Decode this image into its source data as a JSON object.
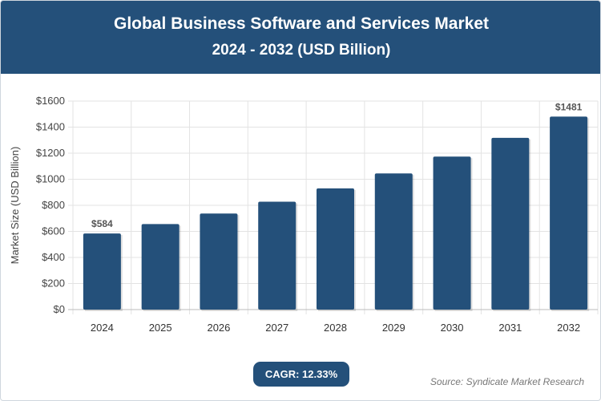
{
  "header": {
    "title": "Global Business Software and Services Market",
    "subtitle": "2024 - 2032 (USD Billion)"
  },
  "footer": {
    "cagr": "CAGR: 12.33%",
    "source": "Source: Syndicate Market Research"
  },
  "colors": {
    "bar": "#24507a",
    "header": "#24507a"
  },
  "chart_data": {
    "type": "bar",
    "title": "Global Business Software and Services Market",
    "subtitle": "2024 - 2032 (USD Billion)",
    "xlabel": "",
    "ylabel": "Market Size (USD Billion)",
    "categories": [
      "2024",
      "2025",
      "2026",
      "2027",
      "2028",
      "2029",
      "2030",
      "2031",
      "2032"
    ],
    "values": [
      584,
      656,
      737,
      828,
      930,
      1045,
      1174,
      1318,
      1481
    ],
    "data_labels": {
      "0": "$584",
      "8": "$1481"
    },
    "ylim": [
      0,
      1600
    ],
    "yticks": [
      "$0",
      "$200",
      "$400",
      "$600",
      "$800",
      "$1000",
      "$1200",
      "$1400",
      "$1600"
    ],
    "grid": true,
    "legend": "none"
  }
}
